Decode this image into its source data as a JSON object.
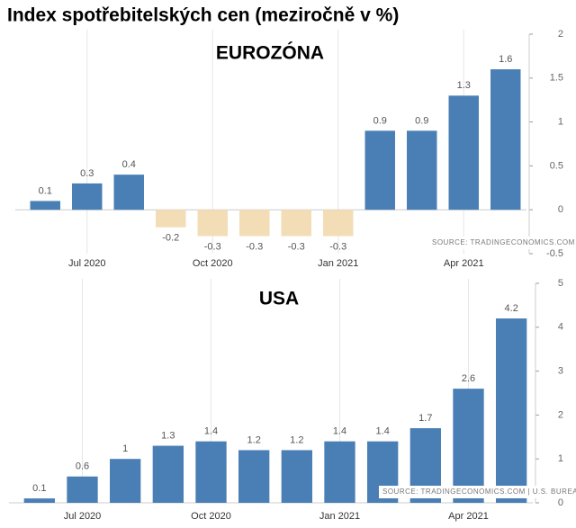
{
  "title": "Index spotřebitelských cen (meziročně v %)",
  "chart_data": [
    {
      "type": "bar",
      "title": "EUROZÓNA",
      "annotation": "SOURCE: TRADINGECONOMICS.COM  |  EUROSTAT",
      "categories": [
        null,
        "Jul 2020",
        null,
        null,
        "Oct 2020",
        null,
        null,
        "Jan 2021",
        null,
        null,
        "Apr 2021",
        null
      ],
      "values": [
        0.1,
        0.3,
        0.4,
        -0.2,
        -0.3,
        -0.3,
        -0.3,
        -0.3,
        0.9,
        0.9,
        1.3,
        1.6
      ],
      "color": "#4a7fb5",
      "negative_color": "#f2ddb6",
      "ylim": [
        -0.5,
        2
      ],
      "yticks": [
        -0.5,
        0,
        0.5,
        1,
        1.5,
        2
      ],
      "grid": "x"
    },
    {
      "type": "bar",
      "title": "USA",
      "annotation": "SOURCE: TRADINGECONOMICS.COM  |  U.S. BUREAU OF LABOR STATISTICS",
      "categories": [
        null,
        "Jul 2020",
        null,
        null,
        "Oct 2020",
        null,
        null,
        "Jan 2021",
        null,
        null,
        "Apr 2021",
        null
      ],
      "values": [
        0.1,
        0.6,
        1,
        1.3,
        1.4,
        1.2,
        1.2,
        1.4,
        1.4,
        1.7,
        2.6,
        4.2
      ],
      "color": "#4a7fb5",
      "negative_color": "#f2ddb6",
      "ylim": [
        0,
        5
      ],
      "yticks": [
        0,
        1,
        2,
        3,
        4,
        5
      ],
      "grid": "x"
    }
  ]
}
